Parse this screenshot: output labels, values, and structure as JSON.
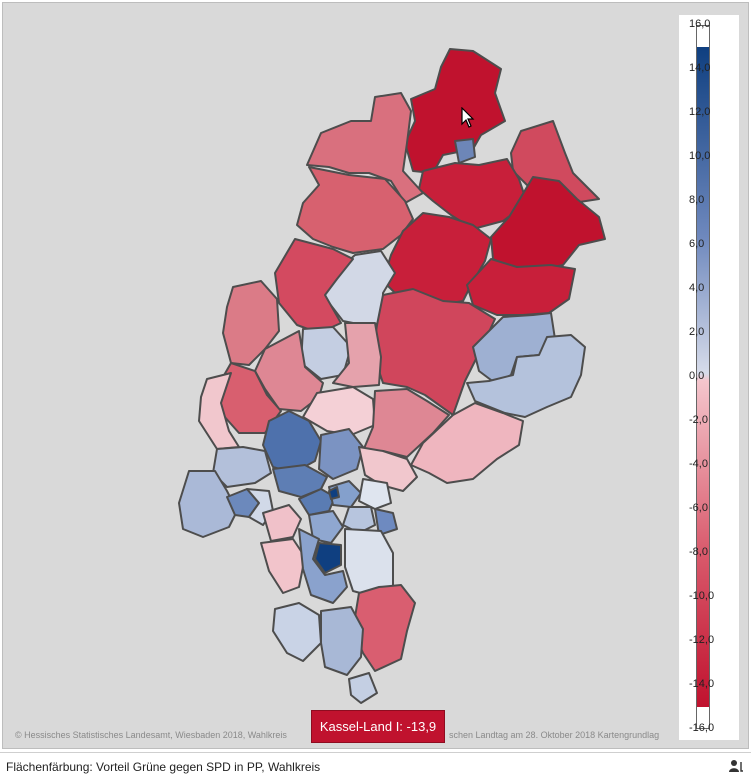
{
  "map": {
    "tooltip": "Kassel-Land I: -13,9",
    "credit_left": "© Hessisches Statistisches Landesamt, Wiesbaden 2018, Wahlkreis",
    "credit_right": "schen Landtag am 28. Oktober 2018 Kartengrundlag"
  },
  "legend": {
    "ticks": [
      "16,0",
      "14,0",
      "12,0",
      "10,0",
      "8,0",
      "6,0",
      "4,0",
      "2,0",
      "0,0",
      "-2,0",
      "-4,0",
      "-6,0",
      "-8,0",
      "-10,0",
      "-12,0",
      "-14,0",
      "-16,0"
    ],
    "color_positive": "#0f3f80",
    "color_negative": "#c0122e",
    "color_zero": "#f5f5f5"
  },
  "footer": {
    "label": "Flächenfärbung: Vorteil Grüne gegen SPD in PP, Wahlkreis",
    "icon": "person-icon"
  },
  "colors": {
    "background": "#d9d9d9",
    "border": "#4d4d4d"
  }
}
